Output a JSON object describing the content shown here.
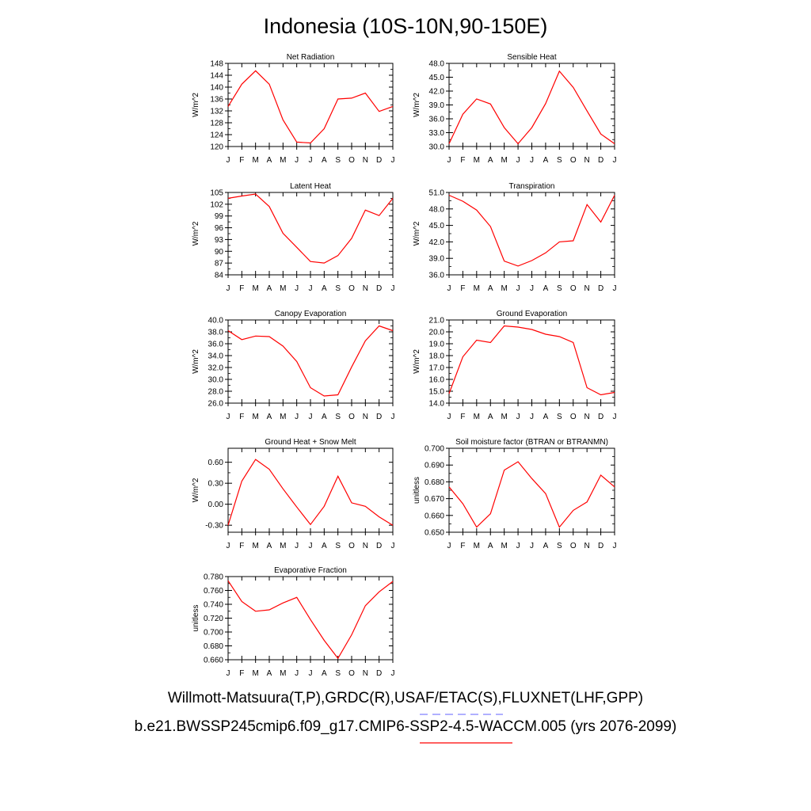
{
  "title": "Indonesia (10S-10N,90-150E)",
  "footer": {
    "line1": "Willmott-Matsuura(T,P),GRDC(R),USAF/ETAC(S),FLUXNET(LHF,GPP)",
    "line2": "b.e21.BWSSP245cmip6.f09_g17.CMIP6-SSP2-4.5-WACCM.005 (yrs 2076-2099)"
  },
  "colors": {
    "model_line": "#ff0000",
    "obs_dash": "#8080ff"
  },
  "chart_data": [
    {
      "type": "line",
      "title": "Net Radiation",
      "ylabel": "W/m^2",
      "categories": [
        "J",
        "F",
        "M",
        "A",
        "M",
        "J",
        "J",
        "A",
        "S",
        "O",
        "N",
        "D",
        "J"
      ],
      "ylim": [
        120,
        148
      ],
      "yticks": [
        "120",
        "124",
        "128",
        "132",
        "136",
        "140",
        "144",
        "148"
      ],
      "series": [
        {
          "values": [
            133.5,
            141.0,
            145.5,
            141.0,
            129.0,
            121.5,
            121.2,
            126.0,
            136.0,
            136.3,
            138.0,
            131.8,
            133.5
          ]
        }
      ]
    },
    {
      "type": "line",
      "title": "Sensible Heat",
      "ylabel": "W/m^2",
      "categories": [
        "J",
        "F",
        "M",
        "A",
        "M",
        "J",
        "J",
        "A",
        "S",
        "O",
        "N",
        "D",
        "J"
      ],
      "ylim": [
        30.0,
        48.0
      ],
      "yticks": [
        "30.0",
        "33.0",
        "36.0",
        "39.0",
        "42.0",
        "45.0",
        "48.0"
      ],
      "series": [
        {
          "values": [
            30.6,
            37.0,
            40.3,
            39.2,
            34.1,
            30.6,
            34.1,
            39.3,
            46.3,
            42.8,
            37.7,
            32.7,
            30.6
          ]
        }
      ]
    },
    {
      "type": "line",
      "title": "Latent Heat",
      "ylabel": "W/m^2",
      "categories": [
        "J",
        "F",
        "M",
        "A",
        "M",
        "J",
        "J",
        "A",
        "S",
        "O",
        "N",
        "D",
        "J"
      ],
      "ylim": [
        84,
        105
      ],
      "yticks": [
        "84",
        "87",
        "90",
        "93",
        "96",
        "99",
        "102",
        "105"
      ],
      "series": [
        {
          "values": [
            103.5,
            104.1,
            104.6,
            101.4,
            94.6,
            91.0,
            87.4,
            87.0,
            88.9,
            93.3,
            100.5,
            99.1,
            103.5
          ]
        }
      ]
    },
    {
      "type": "line",
      "title": "Transpiration",
      "ylabel": "W/m^2",
      "categories": [
        "J",
        "F",
        "M",
        "A",
        "M",
        "J",
        "J",
        "A",
        "S",
        "O",
        "N",
        "D",
        "J"
      ],
      "ylim": [
        36.0,
        51.0
      ],
      "yticks": [
        "36.0",
        "39.0",
        "42.0",
        "45.0",
        "48.0",
        "51.0"
      ],
      "series": [
        {
          "values": [
            50.5,
            49.4,
            47.8,
            44.8,
            38.5,
            37.6,
            38.6,
            40.0,
            42.0,
            42.2,
            48.8,
            45.6,
            50.5
          ]
        }
      ]
    },
    {
      "type": "line",
      "title": "Canopy Evaporation",
      "ylabel": "W/m^2",
      "categories": [
        "J",
        "F",
        "M",
        "A",
        "M",
        "J",
        "J",
        "A",
        "S",
        "O",
        "N",
        "D",
        "J"
      ],
      "ylim": [
        26.0,
        40.0
      ],
      "yticks": [
        "26.0",
        "28.0",
        "30.0",
        "32.0",
        "34.0",
        "36.0",
        "38.0",
        "40.0"
      ],
      "series": [
        {
          "values": [
            38.2,
            36.7,
            37.3,
            37.2,
            35.6,
            33.0,
            28.6,
            27.2,
            27.4,
            32.1,
            36.5,
            39.0,
            38.2
          ]
        }
      ]
    },
    {
      "type": "line",
      "title": "Ground Evaporation",
      "ylabel": "W/m^2",
      "categories": [
        "J",
        "F",
        "M",
        "A",
        "M",
        "J",
        "J",
        "A",
        "S",
        "O",
        "N",
        "D",
        "J"
      ],
      "ylim": [
        14.0,
        21.0
      ],
      "yticks": [
        "14.0",
        "15.0",
        "16.0",
        "17.0",
        "18.0",
        "19.0",
        "20.0",
        "21.0"
      ],
      "series": [
        {
          "values": [
            14.8,
            17.9,
            19.3,
            19.1,
            20.5,
            20.4,
            20.2,
            19.8,
            19.6,
            19.1,
            15.3,
            14.7,
            14.9
          ]
        }
      ]
    },
    {
      "type": "line",
      "title": "Ground Heat + Snow Melt",
      "ylabel": "W/m^2",
      "categories": [
        "J",
        "F",
        "M",
        "A",
        "M",
        "J",
        "J",
        "A",
        "S",
        "O",
        "N",
        "D",
        "J"
      ],
      "ylim": [
        -0.4,
        0.8
      ],
      "yticks": [
        "-0.30",
        "0.00",
        "0.30",
        "0.60"
      ],
      "ytick_values": [
        -0.3,
        0.0,
        0.3,
        0.6
      ],
      "series": [
        {
          "values": [
            -0.3,
            0.33,
            0.64,
            0.5,
            0.22,
            -0.04,
            -0.29,
            -0.03,
            0.4,
            0.02,
            -0.03,
            -0.18,
            -0.3
          ]
        }
      ]
    },
    {
      "type": "line",
      "title": "Soil moisture factor (BTRAN or BTRANMN)",
      "ylabel": "unitless",
      "categories": [
        "J",
        "F",
        "M",
        "A",
        "M",
        "J",
        "J",
        "A",
        "S",
        "O",
        "N",
        "D",
        "J"
      ],
      "ylim": [
        0.65,
        0.7
      ],
      "yticks": [
        "0.650",
        "0.660",
        "0.670",
        "0.680",
        "0.690",
        "0.700"
      ],
      "series": [
        {
          "values": [
            0.677,
            0.667,
            0.653,
            0.661,
            0.687,
            0.692,
            0.682,
            0.673,
            0.653,
            0.663,
            0.668,
            0.684,
            0.677
          ]
        }
      ]
    },
    {
      "type": "line",
      "title": "Evaporative Fraction",
      "ylabel": "unitless",
      "categories": [
        "J",
        "F",
        "M",
        "A",
        "M",
        "J",
        "J",
        "A",
        "S",
        "O",
        "N",
        "D",
        "J"
      ],
      "ylim": [
        0.66,
        0.78
      ],
      "yticks": [
        "0.660",
        "0.680",
        "0.700",
        "0.720",
        "0.740",
        "0.760",
        "0.780"
      ],
      "series": [
        {
          "values": [
            0.774,
            0.744,
            0.73,
            0.732,
            0.742,
            0.75,
            0.718,
            0.688,
            0.662,
            0.696,
            0.738,
            0.758,
            0.773
          ]
        }
      ]
    }
  ]
}
